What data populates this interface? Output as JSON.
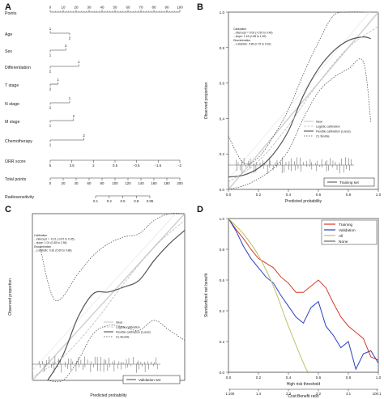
{
  "panels": {
    "a": {
      "letter": "A",
      "chart_data": {
        "type": "nomogram",
        "rows": [
          {
            "name": "Points",
            "ticks": [
              "0",
              "10",
              "20",
              "30",
              "40",
              "50",
              "60",
              "70",
              "80",
              "90",
              "100"
            ]
          },
          {
            "name": "Age",
            "levels": [
              "1",
              "2"
            ]
          },
          {
            "name": "Sex",
            "levels": [
              "2",
              "1"
            ]
          },
          {
            "name": "Differentiation",
            "levels": [
              "1",
              "2"
            ]
          },
          {
            "name": "T stage",
            "levels": [
              "1",
              "2"
            ]
          },
          {
            "name": "N stage",
            "levels": [
              "1",
              "2"
            ]
          },
          {
            "name": "M stage",
            "levels": [
              "2",
              "1"
            ]
          },
          {
            "name": "Chemotherapy",
            "levels": [
              "2",
              "1"
            ]
          },
          {
            "name": "ORR score",
            "ticks": [
              "5",
              "3.5",
              "2",
              "0.5",
              "-0.5",
              "-1.5",
              "-2"
            ]
          },
          {
            "name": "Total points",
            "ticks": [
              "0",
              "20",
              "40",
              "60",
              "80",
              "100",
              "120",
              "140",
              "160",
              "180",
              "200"
            ]
          },
          {
            "name": "Radiosensitivity",
            "ticks": [
              "0.1",
              "0.2",
              "0.5",
              "0.8",
              "0.95"
            ]
          }
        ]
      }
    },
    "b": {
      "letter": "B",
      "chart_data": {
        "type": "line",
        "xlabel": "Predicted probability",
        "ylabel": "Observed proportion",
        "xlim": [
          0,
          1
        ],
        "ylim": [
          0,
          1
        ],
        "xticks": [
          "0.0",
          "0.2",
          "0.4",
          "0.6",
          "0.8",
          "1.0"
        ],
        "yticks": [
          "0.0",
          "0.2",
          "0.4",
          "0.6",
          "0.8",
          "1.0"
        ],
        "stats": [
          "Calibration",
          "...intercept = 0.00 (-0.50 to 0.46)",
          "...slope: 1.15 (0.58 to 1.82)",
          "Discrimination",
          "...c-statistic: 0.86 (0.79 to 0.92)"
        ],
        "legend": [
          "Ideal",
          "Logistic calibration",
          "Flexible calibration (Loess)",
          "CL flexible"
        ],
        "set_label": "Training set",
        "series": [
          {
            "name": "Flexible calibration (Loess)",
            "x": [
              0.0,
              0.1,
              0.2,
              0.3,
              0.4,
              0.5,
              0.6,
              0.7,
              0.8,
              0.9,
              0.95
            ],
            "y": [
              0.07,
              0.08,
              0.12,
              0.2,
              0.33,
              0.53,
              0.68,
              0.78,
              0.84,
              0.86,
              0.85
            ]
          },
          {
            "name": "Logistic calibration",
            "x": [
              0.0,
              0.2,
              0.4,
              0.6,
              0.8,
              1.0
            ],
            "y": [
              0.04,
              0.16,
              0.36,
              0.6,
              0.8,
              0.92
            ]
          },
          {
            "name": "CL flexible upper",
            "x": [
              0.0,
              0.1,
              0.2,
              0.3,
              0.4,
              0.5,
              0.6,
              0.7,
              0.8,
              0.9
            ],
            "y": [
              0.3,
              0.15,
              0.18,
              0.3,
              0.45,
              0.65,
              0.83,
              0.98,
              1.0,
              1.0
            ]
          },
          {
            "name": "CL flexible lower",
            "x": [
              0.0,
              0.1,
              0.2,
              0.3,
              0.4,
              0.5,
              0.6,
              0.7,
              0.8,
              0.9,
              0.95
            ],
            "y": [
              0.0,
              0.02,
              0.06,
              0.12,
              0.22,
              0.4,
              0.55,
              0.63,
              0.68,
              0.72,
              0.38
            ]
          }
        ]
      }
    },
    "c": {
      "letter": "C",
      "chart_data": {
        "type": "line",
        "xlabel": "Predicted probability",
        "ylabel": "Observed proportion",
        "xlim": [
          0,
          1
        ],
        "ylim": [
          0,
          1
        ],
        "stats": [
          "Calibration",
          "...intercept = -0.21 (-0.87 to 0.35)",
          "...slope: 1.01 (0.48 to 1.56)",
          "Discrimination",
          "...c-statistic: 0.81 (0.69 to 0.88)"
        ],
        "legend": [
          "Ideal",
          "Logistic calibration",
          "Flexible calibration (Loess)",
          "CL flexible"
        ],
        "set_label": "Validation set",
        "series": [
          {
            "name": "Flexible calibration (Loess)",
            "x": [
              0.1,
              0.2,
              0.3,
              0.4,
              0.5,
              0.6,
              0.7,
              0.8,
              0.9,
              1.0
            ],
            "y": [
              0.0,
              0.15,
              0.38,
              0.52,
              0.53,
              0.56,
              0.6,
              0.72,
              0.82,
              0.9
            ]
          },
          {
            "name": "Logistic calibration",
            "x": [
              0.0,
              0.2,
              0.4,
              0.6,
              0.8,
              1.0
            ],
            "y": [
              0.02,
              0.14,
              0.34,
              0.58,
              0.8,
              0.96
            ]
          },
          {
            "name": "CL flexible upper",
            "x": [
              0.05,
              0.15,
              0.3,
              0.4,
              0.5,
              0.6,
              0.7,
              0.8,
              0.9,
              1.0
            ],
            "y": [
              0.8,
              0.48,
              0.64,
              0.75,
              0.82,
              0.86,
              0.88,
              0.96,
              1.0,
              1.0
            ]
          },
          {
            "name": "CL flexible lower",
            "x": [
              0.1,
              0.2,
              0.3,
              0.4,
              0.5,
              0.6,
              0.7,
              0.8,
              0.9,
              1.0
            ],
            "y": [
              0.0,
              0.0,
              0.12,
              0.28,
              0.33,
              0.32,
              0.3,
              0.36,
              0.3,
              0.24
            ]
          }
        ]
      }
    },
    "d": {
      "letter": "D",
      "chart_data": {
        "type": "line",
        "xlabel": "High risk threshold",
        "ylabel": "Standardized net benefit",
        "x2label": "Cost:Benefit ratio",
        "xlim": [
          0,
          1
        ],
        "ylim": [
          0,
          1
        ],
        "xticks": [
          "0.0",
          "0.2",
          "0.4",
          "0.6",
          "0.8",
          "1.0"
        ],
        "yticks": [
          "0.0",
          "0.2",
          "0.4",
          "0.6",
          "0.8",
          "1.0"
        ],
        "x2ticks": [
          "1:100",
          "1:4",
          "2:3",
          "3:2",
          "4:1",
          "100:1"
        ],
        "legend": [
          "Training",
          "Validation",
          "All",
          "None"
        ],
        "colors": {
          "Training": "#d43a2a",
          "Validation": "#2a3fbf",
          "All": "#b7c267",
          "None": "#666666"
        },
        "series": [
          {
            "name": "Training",
            "x": [
              0.0,
              0.05,
              0.1,
              0.15,
              0.2,
              0.25,
              0.3,
              0.35,
              0.4,
              0.45,
              0.5,
              0.55,
              0.6,
              0.65,
              0.7,
              0.75,
              0.8,
              0.85,
              0.9,
              0.95,
              1.0
            ],
            "y": [
              1.0,
              0.93,
              0.87,
              0.8,
              0.74,
              0.71,
              0.68,
              0.62,
              0.58,
              0.52,
              0.52,
              0.56,
              0.6,
              0.55,
              0.45,
              0.36,
              0.3,
              0.26,
              0.22,
              0.1,
              0.08
            ]
          },
          {
            "name": "Validation",
            "x": [
              0.0,
              0.05,
              0.1,
              0.15,
              0.2,
              0.25,
              0.3,
              0.35,
              0.4,
              0.45,
              0.5,
              0.55,
              0.6,
              0.65,
              0.7,
              0.75,
              0.8,
              0.85,
              0.9,
              0.95,
              1.0
            ],
            "y": [
              1.0,
              0.92,
              0.82,
              0.74,
              0.68,
              0.62,
              0.58,
              0.5,
              0.43,
              0.36,
              0.32,
              0.42,
              0.46,
              0.3,
              0.24,
              0.16,
              0.2,
              0.02,
              0.12,
              0.14,
              0.06
            ]
          },
          {
            "name": "All",
            "x": [
              0.0,
              0.1,
              0.2,
              0.3,
              0.4,
              0.5,
              0.53
            ],
            "y": [
              1.0,
              0.9,
              0.76,
              0.56,
              0.3,
              0.06,
              0.0
            ]
          },
          {
            "name": "None",
            "x": [
              0.0,
              1.0
            ],
            "y": [
              0.0,
              0.0
            ]
          }
        ]
      }
    }
  }
}
